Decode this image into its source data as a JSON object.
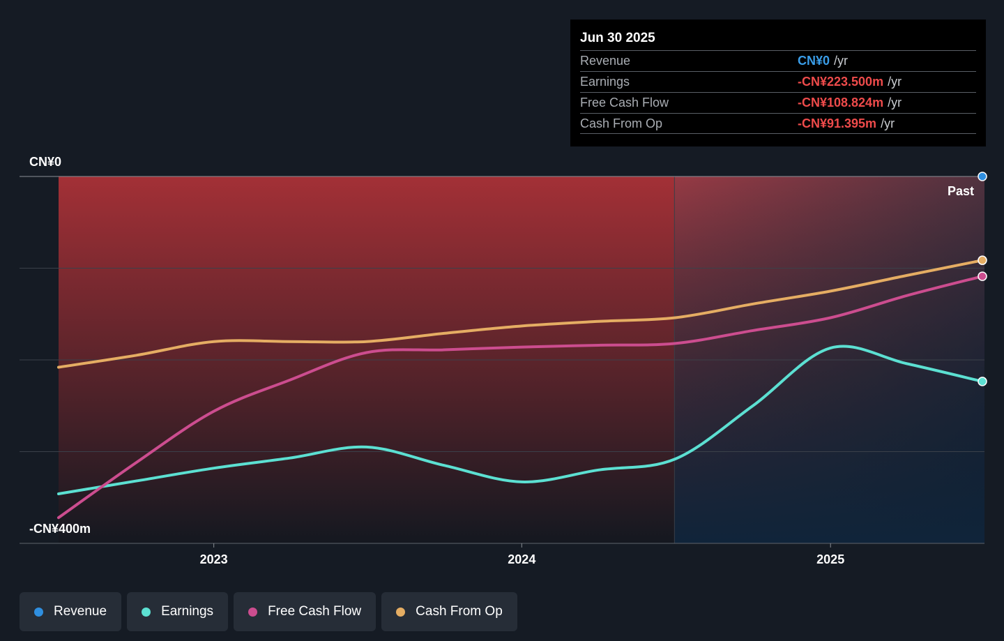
{
  "chart_data": {
    "type": "line",
    "y_top_label": "CN¥0",
    "y_bottom_label": "-CN¥400m",
    "ylim": [
      -400,
      0
    ],
    "x_range": [
      "2022-07-01",
      "2025-06-30"
    ],
    "x_ticks": [
      "2023",
      "2024",
      "2025"
    ],
    "past_label": "Past",
    "grid": true,
    "series": [
      {
        "name": "Revenue",
        "color": "#2f8fe0",
        "points": [
          [
            "2025-06-30",
            0
          ]
        ]
      },
      {
        "name": "Earnings",
        "color": "#5ce0d2",
        "points": [
          [
            "2022-07-01",
            -346
          ],
          [
            "2022-10-01",
            -332
          ],
          [
            "2023-01-01",
            -318
          ],
          [
            "2023-04-01",
            -307
          ],
          [
            "2023-07-01",
            -295
          ],
          [
            "2023-10-01",
            -315
          ],
          [
            "2024-01-01",
            -333
          ],
          [
            "2024-04-01",
            -320
          ],
          [
            "2024-07-01",
            -308
          ],
          [
            "2024-10-01",
            -250
          ],
          [
            "2025-01-01",
            -187
          ],
          [
            "2025-04-01",
            -204
          ],
          [
            "2025-06-30",
            -223.5
          ]
        ]
      },
      {
        "name": "Free Cash Flow",
        "color": "#cc4d8f",
        "points": [
          [
            "2022-07-01",
            -372
          ],
          [
            "2022-10-01",
            -312
          ],
          [
            "2023-01-01",
            -256
          ],
          [
            "2023-04-01",
            -222
          ],
          [
            "2023-07-01",
            -192
          ],
          [
            "2023-10-01",
            -189
          ],
          [
            "2024-01-01",
            -186
          ],
          [
            "2024-04-01",
            -184
          ],
          [
            "2024-07-01",
            -182
          ],
          [
            "2024-10-01",
            -168
          ],
          [
            "2025-01-01",
            -154
          ],
          [
            "2025-04-01",
            -130
          ],
          [
            "2025-06-30",
            -108.824
          ]
        ]
      },
      {
        "name": "Cash From Op",
        "color": "#e5ad63",
        "points": [
          [
            "2022-07-01",
            -208
          ],
          [
            "2022-10-01",
            -195
          ],
          [
            "2023-01-01",
            -180
          ],
          [
            "2023-04-01",
            -180
          ],
          [
            "2023-07-01",
            -180
          ],
          [
            "2023-10-01",
            -171
          ],
          [
            "2024-01-01",
            -163
          ],
          [
            "2024-04-01",
            -158
          ],
          [
            "2024-07-01",
            -154
          ],
          [
            "2024-10-01",
            -139
          ],
          [
            "2025-01-01",
            -125
          ],
          [
            "2025-04-01",
            -108
          ],
          [
            "2025-06-30",
            -91.395
          ]
        ]
      }
    ]
  },
  "tooltip": {
    "date": "Jun 30 2025",
    "rows": [
      {
        "label": "Revenue",
        "value": "CN¥0",
        "unit": "/yr",
        "color": "#3a9de8"
      },
      {
        "label": "Earnings",
        "value": "-CN¥223.500m",
        "unit": "/yr",
        "color": "#ee4b4b"
      },
      {
        "label": "Free Cash Flow",
        "value": "-CN¥108.824m",
        "unit": "/yr",
        "color": "#ee4b4b"
      },
      {
        "label": "Cash From Op",
        "value": "-CN¥91.395m",
        "unit": "/yr",
        "color": "#ee4b4b"
      }
    ]
  },
  "legend": [
    {
      "label": "Revenue",
      "color": "#2f8fe0"
    },
    {
      "label": "Earnings",
      "color": "#5ce0d2"
    },
    {
      "label": "Free Cash Flow",
      "color": "#cc4d8f"
    },
    {
      "label": "Cash From Op",
      "color": "#e5ad63"
    }
  ]
}
